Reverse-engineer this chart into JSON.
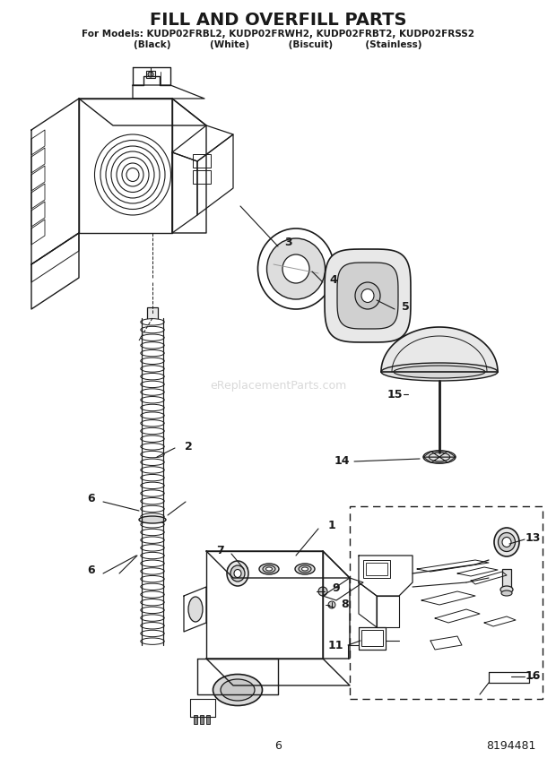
{
  "title": "FILL AND OVERFILL PARTS",
  "subtitle_line1": "For Models: KUDP02FRBL2, KUDP02FRWH2, KUDP02FRBT2, KUDP02FRSS2",
  "subtitle_line2": "(Black)            (White)            (Biscuit)          (Stainless)",
  "page_number": "6",
  "part_number": "8194481",
  "watermark": "eReplacementParts.com",
  "bg_color": "#ffffff",
  "line_color": "#1a1a1a",
  "gray_light": "#cccccc",
  "gray_mid": "#999999",
  "gray_dark": "#555555"
}
